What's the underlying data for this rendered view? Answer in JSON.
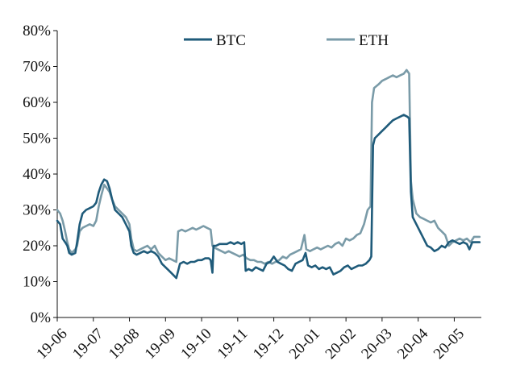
{
  "chart_data": {
    "type": "line",
    "title": "",
    "xlabel": "",
    "ylabel": "",
    "ylim": [
      0,
      80
    ],
    "ytick_labels": [
      "0%",
      "10%",
      "20%",
      "30%",
      "40%",
      "50%",
      "60%",
      "70%",
      "80%"
    ],
    "categories": [
      "19-06",
      "19-07",
      "19-08",
      "19-09",
      "19-10",
      "19-11",
      "19-12",
      "20-01",
      "20-02",
      "20-03",
      "20-04",
      "20-05"
    ],
    "x_units": "months since 19-06 (fractional)",
    "grid": false,
    "legend_position": "top",
    "series": [
      {
        "name": "BTC",
        "color": "#1f5b7a",
        "points": [
          [
            0.0,
            27
          ],
          [
            0.08,
            26
          ],
          [
            0.15,
            22
          ],
          [
            0.22,
            21
          ],
          [
            0.28,
            20
          ],
          [
            0.33,
            18
          ],
          [
            0.4,
            17.5
          ],
          [
            0.5,
            18
          ],
          [
            0.55,
            21
          ],
          [
            0.62,
            26
          ],
          [
            0.7,
            29
          ],
          [
            0.8,
            30
          ],
          [
            0.9,
            30.5
          ],
          [
            1.0,
            31
          ],
          [
            1.08,
            32
          ],
          [
            1.15,
            35
          ],
          [
            1.22,
            37
          ],
          [
            1.3,
            38.5
          ],
          [
            1.38,
            38
          ],
          [
            1.45,
            36
          ],
          [
            1.52,
            33
          ],
          [
            1.6,
            30
          ],
          [
            1.7,
            29
          ],
          [
            1.8,
            28
          ],
          [
            1.9,
            26
          ],
          [
            2.0,
            24
          ],
          [
            2.05,
            20
          ],
          [
            2.12,
            18
          ],
          [
            2.2,
            17.5
          ],
          [
            2.3,
            18
          ],
          [
            2.4,
            18.5
          ],
          [
            2.5,
            18
          ],
          [
            2.6,
            18.5
          ],
          [
            2.7,
            18
          ],
          [
            2.8,
            17
          ],
          [
            2.9,
            15
          ],
          [
            3.0,
            14
          ],
          [
            3.1,
            13
          ],
          [
            3.2,
            12
          ],
          [
            3.3,
            11
          ],
          [
            3.4,
            15
          ],
          [
            3.5,
            15.5
          ],
          [
            3.6,
            15
          ],
          [
            3.7,
            15.5
          ],
          [
            3.8,
            15.5
          ],
          [
            3.9,
            16
          ],
          [
            4.0,
            16
          ],
          [
            4.1,
            16.5
          ],
          [
            4.2,
            16.5
          ],
          [
            4.25,
            16
          ],
          [
            4.3,
            12.5
          ],
          [
            4.33,
            20
          ],
          [
            4.4,
            20
          ],
          [
            4.5,
            20.5
          ],
          [
            4.6,
            20.5
          ],
          [
            4.7,
            20.5
          ],
          [
            4.8,
            21
          ],
          [
            4.9,
            20.5
          ],
          [
            5.0,
            21
          ],
          [
            5.1,
            20.5
          ],
          [
            5.18,
            21
          ],
          [
            5.22,
            13
          ],
          [
            5.3,
            13.5
          ],
          [
            5.4,
            13
          ],
          [
            5.5,
            14
          ],
          [
            5.6,
            13.5
          ],
          [
            5.7,
            13
          ],
          [
            5.8,
            15
          ],
          [
            5.9,
            15.5
          ],
          [
            6.0,
            17
          ],
          [
            6.1,
            15.5
          ],
          [
            6.2,
            15
          ],
          [
            6.3,
            14.5
          ],
          [
            6.4,
            13.5
          ],
          [
            6.5,
            13
          ],
          [
            6.6,
            15
          ],
          [
            6.7,
            15.5
          ],
          [
            6.8,
            16
          ],
          [
            6.88,
            18
          ],
          [
            6.95,
            14.5
          ],
          [
            7.05,
            14
          ],
          [
            7.15,
            14.5
          ],
          [
            7.25,
            13.5
          ],
          [
            7.35,
            14
          ],
          [
            7.45,
            13.5
          ],
          [
            7.55,
            14
          ],
          [
            7.65,
            12
          ],
          [
            7.75,
            12.5
          ],
          [
            7.85,
            13
          ],
          [
            7.95,
            14
          ],
          [
            8.05,
            14.5
          ],
          [
            8.15,
            13.5
          ],
          [
            8.25,
            14
          ],
          [
            8.35,
            14.5
          ],
          [
            8.45,
            14.5
          ],
          [
            8.55,
            15
          ],
          [
            8.65,
            16
          ],
          [
            8.7,
            17
          ],
          [
            8.75,
            48
          ],
          [
            8.8,
            50
          ],
          [
            8.9,
            51
          ],
          [
            9.0,
            52
          ],
          [
            9.1,
            53
          ],
          [
            9.2,
            54
          ],
          [
            9.3,
            55
          ],
          [
            9.4,
            55.5
          ],
          [
            9.5,
            56
          ],
          [
            9.6,
            56.5
          ],
          [
            9.7,
            56
          ],
          [
            9.75,
            55.5
          ],
          [
            9.8,
            35
          ],
          [
            9.85,
            28
          ],
          [
            9.95,
            26
          ],
          [
            10.05,
            24
          ],
          [
            10.15,
            22
          ],
          [
            10.25,
            20
          ],
          [
            10.35,
            19.5
          ],
          [
            10.45,
            18.5
          ],
          [
            10.55,
            19
          ],
          [
            10.65,
            20
          ],
          [
            10.75,
            19.5
          ],
          [
            10.85,
            21
          ],
          [
            10.95,
            21.5
          ],
          [
            11.05,
            21
          ],
          [
            11.15,
            20.5
          ],
          [
            11.25,
            21
          ],
          [
            11.35,
            20.5
          ],
          [
            11.42,
            19
          ],
          [
            11.5,
            21
          ],
          [
            11.6,
            21
          ],
          [
            11.7,
            21
          ]
        ]
      },
      {
        "name": "ETH",
        "color": "#7a9ba8",
        "points": [
          [
            0.0,
            30
          ],
          [
            0.08,
            29
          ],
          [
            0.15,
            27
          ],
          [
            0.22,
            24
          ],
          [
            0.28,
            21
          ],
          [
            0.33,
            19
          ],
          [
            0.4,
            18
          ],
          [
            0.5,
            19
          ],
          [
            0.55,
            20
          ],
          [
            0.62,
            24
          ],
          [
            0.7,
            25
          ],
          [
            0.8,
            25.5
          ],
          [
            0.9,
            26
          ],
          [
            1.0,
            25.5
          ],
          [
            1.08,
            27
          ],
          [
            1.15,
            31
          ],
          [
            1.22,
            34
          ],
          [
            1.3,
            37
          ],
          [
            1.38,
            36
          ],
          [
            1.45,
            35
          ],
          [
            1.52,
            33
          ],
          [
            1.6,
            31
          ],
          [
            1.7,
            30
          ],
          [
            1.8,
            29
          ],
          [
            1.9,
            28
          ],
          [
            2.0,
            26
          ],
          [
            2.05,
            22
          ],
          [
            2.12,
            19
          ],
          [
            2.2,
            18.5
          ],
          [
            2.3,
            19
          ],
          [
            2.4,
            19.5
          ],
          [
            2.5,
            20
          ],
          [
            2.6,
            19
          ],
          [
            2.7,
            20
          ],
          [
            2.8,
            18
          ],
          [
            2.9,
            17
          ],
          [
            3.0,
            16
          ],
          [
            3.1,
            16.5
          ],
          [
            3.2,
            16
          ],
          [
            3.3,
            15.5
          ],
          [
            3.35,
            24
          ],
          [
            3.45,
            24.5
          ],
          [
            3.55,
            24
          ],
          [
            3.65,
            24.5
          ],
          [
            3.75,
            25
          ],
          [
            3.85,
            24.5
          ],
          [
            3.95,
            25
          ],
          [
            4.05,
            25.5
          ],
          [
            4.15,
            25
          ],
          [
            4.25,
            24.5
          ],
          [
            4.3,
            20
          ],
          [
            4.35,
            19.5
          ],
          [
            4.45,
            19
          ],
          [
            4.55,
            18.5
          ],
          [
            4.65,
            18
          ],
          [
            4.75,
            18.5
          ],
          [
            4.85,
            18
          ],
          [
            4.95,
            17.5
          ],
          [
            5.05,
            17
          ],
          [
            5.15,
            17.5
          ],
          [
            5.25,
            16.5
          ],
          [
            5.35,
            16
          ],
          [
            5.45,
            16
          ],
          [
            5.55,
            15.5
          ],
          [
            5.65,
            15.5
          ],
          [
            5.75,
            15
          ],
          [
            5.85,
            15.5
          ],
          [
            5.95,
            15
          ],
          [
            6.05,
            15.5
          ],
          [
            6.15,
            16
          ],
          [
            6.25,
            17
          ],
          [
            6.35,
            16.5
          ],
          [
            6.45,
            17.5
          ],
          [
            6.55,
            18
          ],
          [
            6.65,
            18.5
          ],
          [
            6.75,
            19
          ],
          [
            6.85,
            23
          ],
          [
            6.9,
            19
          ],
          [
            7.0,
            18.5
          ],
          [
            7.1,
            19
          ],
          [
            7.2,
            19.5
          ],
          [
            7.3,
            19
          ],
          [
            7.4,
            19.5
          ],
          [
            7.5,
            20
          ],
          [
            7.6,
            19.5
          ],
          [
            7.7,
            20.5
          ],
          [
            7.8,
            21
          ],
          [
            7.9,
            20
          ],
          [
            8.0,
            22
          ],
          [
            8.1,
            21.5
          ],
          [
            8.2,
            22
          ],
          [
            8.3,
            23
          ],
          [
            8.4,
            23.5
          ],
          [
            8.5,
            26
          ],
          [
            8.6,
            30
          ],
          [
            8.68,
            31
          ],
          [
            8.72,
            60
          ],
          [
            8.78,
            64
          ],
          [
            8.9,
            65
          ],
          [
            9.0,
            66
          ],
          [
            9.1,
            66.5
          ],
          [
            9.2,
            67
          ],
          [
            9.3,
            67.5
          ],
          [
            9.4,
            67
          ],
          [
            9.5,
            67.5
          ],
          [
            9.6,
            68
          ],
          [
            9.68,
            69
          ],
          [
            9.75,
            68
          ],
          [
            9.8,
            38
          ],
          [
            9.85,
            33
          ],
          [
            9.95,
            29
          ],
          [
            10.05,
            28
          ],
          [
            10.15,
            27.5
          ],
          [
            10.25,
            27
          ],
          [
            10.35,
            26.5
          ],
          [
            10.45,
            27
          ],
          [
            10.55,
            25
          ],
          [
            10.65,
            24
          ],
          [
            10.75,
            23
          ],
          [
            10.85,
            20
          ],
          [
            10.95,
            21
          ],
          [
            11.05,
            21.5
          ],
          [
            11.15,
            22
          ],
          [
            11.25,
            21.5
          ],
          [
            11.35,
            22
          ],
          [
            11.45,
            21
          ],
          [
            11.55,
            22.5
          ],
          [
            11.65,
            22.5
          ],
          [
            11.7,
            22.5
          ]
        ]
      }
    ]
  }
}
